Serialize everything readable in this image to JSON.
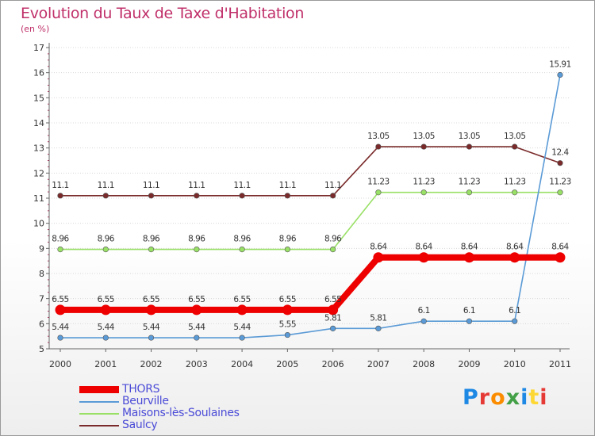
{
  "chart_data": {
    "type": "line",
    "title": "Evolution du Taux de Taxe d'Habitation",
    "subtitle": "(en %)",
    "xlabel": "",
    "ylabel": "",
    "ylim": [
      5,
      17
    ],
    "yticks": [
      "5",
      "6",
      "7",
      "8",
      "9",
      "10",
      "11",
      "12",
      "13",
      "14",
      "15",
      "16",
      "17"
    ],
    "categories": [
      "2000",
      "2001",
      "2002",
      "2003",
      "2004",
      "2005",
      "2006",
      "2007",
      "2008",
      "2009",
      "2010",
      "2011"
    ],
    "grid": true,
    "series": [
      {
        "name": "Saulcy",
        "color": "#7a2a2a",
        "values": [
          11.1,
          11.1,
          11.1,
          11.1,
          11.1,
          11.1,
          11.1,
          13.05,
          13.05,
          13.05,
          13.05,
          12.4
        ],
        "labels": [
          "11.1",
          "11.1",
          "11.1",
          "11.1",
          "11.1",
          "11.1",
          "11.1",
          "13.05",
          "13.05",
          "13.05",
          "13.05",
          "12.4"
        ]
      },
      {
        "name": "Maisons-lès-Soulaines",
        "color": "#99e066",
        "values": [
          8.96,
          8.96,
          8.96,
          8.96,
          8.96,
          8.96,
          8.96,
          11.23,
          11.23,
          11.23,
          11.23,
          11.23
        ],
        "labels": [
          "8.96",
          "8.96",
          "8.96",
          "8.96",
          "8.96",
          "8.96",
          "8.96",
          "11.23",
          "11.23",
          "11.23",
          "11.23",
          "11.23"
        ]
      },
      {
        "name": "Beurville",
        "color": "#5a9ad6",
        "values": [
          5.44,
          5.44,
          5.44,
          5.44,
          5.44,
          5.55,
          5.81,
          5.81,
          6.1,
          6.1,
          6.1,
          15.91
        ],
        "labels": [
          "5.44",
          "5.44",
          "5.44",
          "5.44",
          "5.44",
          "5.55",
          "5.81",
          "5.81",
          "6.1",
          "6.1",
          "6.1",
          "15.91"
        ]
      },
      {
        "name": "THORS",
        "color": "#ee0000",
        "values": [
          6.55,
          6.55,
          6.55,
          6.55,
          6.55,
          6.55,
          6.55,
          8.64,
          8.64,
          8.64,
          8.64,
          8.64
        ],
        "labels": [
          "6.55",
          "6.55",
          "6.55",
          "6.55",
          "6.55",
          "6.55",
          "6.55",
          "8.64",
          "8.64",
          "8.64",
          "8.64",
          "8.64"
        ]
      }
    ],
    "legend": [
      "THORS",
      "Beurville",
      "Maisons-lès-Soulaines",
      "Saulcy"
    ]
  },
  "logo": {
    "text": "Proxiti",
    "colors": [
      "#1e88e5",
      "#e53935",
      "#fb8c00",
      "#43a047",
      "#1e88e5",
      "#fdd835",
      "#e53935"
    ]
  }
}
